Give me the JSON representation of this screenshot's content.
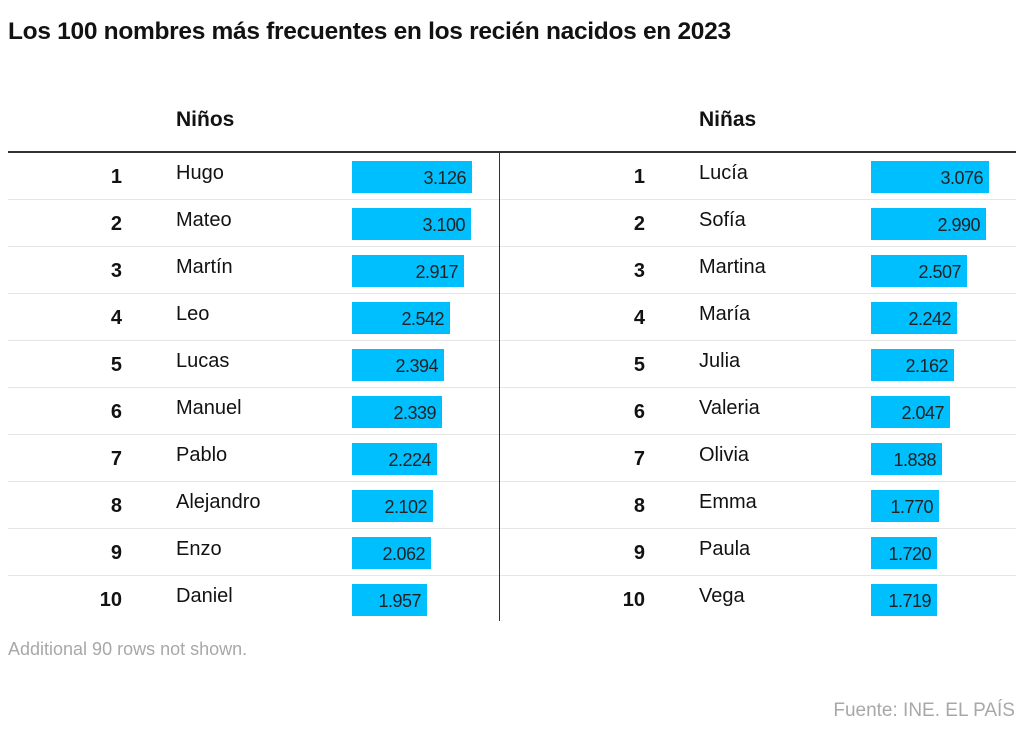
{
  "title": "Los 100 nombres más frecuentes en los recién nacidos en 2023",
  "note": "Additional 90 rows not shown.",
  "source": "Fuente: INE. EL PAÍS",
  "colors": {
    "bar": "#00bfff",
    "text": "#121212",
    "muted": "#a8a8a8"
  },
  "chart_data": {
    "type": "table",
    "title": "Los 100 nombres más frecuentes en los recién nacidos en 2023",
    "bar_max": 3200,
    "tables": [
      {
        "header": "Niños",
        "rows": [
          {
            "rank": "1",
            "name": "Hugo",
            "value": 3126,
            "label": "3.126"
          },
          {
            "rank": "2",
            "name": "Mateo",
            "value": 3100,
            "label": "3.100"
          },
          {
            "rank": "3",
            "name": "Martín",
            "value": 2917,
            "label": "2.917"
          },
          {
            "rank": "4",
            "name": "Leo",
            "value": 2542,
            "label": "2.542"
          },
          {
            "rank": "5",
            "name": "Lucas",
            "value": 2394,
            "label": "2.394"
          },
          {
            "rank": "6",
            "name": "Manuel",
            "value": 2339,
            "label": "2.339"
          },
          {
            "rank": "7",
            "name": "Pablo",
            "value": 2224,
            "label": "2.224"
          },
          {
            "rank": "8",
            "name": "Alejandro",
            "value": 2102,
            "label": "2.102"
          },
          {
            "rank": "9",
            "name": "Enzo",
            "value": 2062,
            "label": "2.062"
          },
          {
            "rank": "10",
            "name": "Daniel",
            "value": 1957,
            "label": "1.957"
          }
        ]
      },
      {
        "header": "Niñas",
        "rows": [
          {
            "rank": "1",
            "name": "Lucía",
            "value": 3076,
            "label": "3.076"
          },
          {
            "rank": "2",
            "name": "Sofía",
            "value": 2990,
            "label": "2.990"
          },
          {
            "rank": "3",
            "name": "Martina",
            "value": 2507,
            "label": "2.507"
          },
          {
            "rank": "4",
            "name": "María",
            "value": 2242,
            "label": "2.242"
          },
          {
            "rank": "5",
            "name": "Julia",
            "value": 2162,
            "label": "2.162"
          },
          {
            "rank": "6",
            "name": "Valeria",
            "value": 2047,
            "label": "2.047"
          },
          {
            "rank": "7",
            "name": "Olivia",
            "value": 1838,
            "label": "1.838"
          },
          {
            "rank": "8",
            "name": "Emma",
            "value": 1770,
            "label": "1.770"
          },
          {
            "rank": "9",
            "name": "Paula",
            "value": 1720,
            "label": "1.720"
          },
          {
            "rank": "10",
            "name": "Vega",
            "value": 1719,
            "label": "1.719"
          }
        ]
      }
    ]
  }
}
